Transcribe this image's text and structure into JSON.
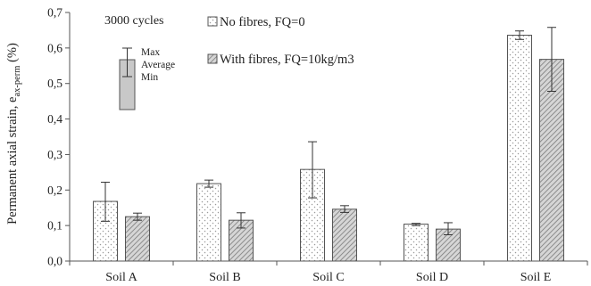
{
  "chart_data": {
    "type": "bar",
    "categories": [
      "Soil A",
      "Soil B",
      "Soil C",
      "Soil D",
      "Soil E"
    ],
    "series": [
      {
        "name": "No fibres, FQ=0",
        "values": [
          0.168,
          0.218,
          0.258,
          0.104,
          0.636
        ],
        "min": [
          0.112,
          0.208,
          0.178,
          0.1,
          0.624
        ],
        "max": [
          0.222,
          0.228,
          0.336,
          0.106,
          0.648
        ],
        "pattern": "dots"
      },
      {
        "name": "With fibres, FQ=10kg/m3",
        "values": [
          0.125,
          0.115,
          0.146,
          0.09,
          0.568
        ],
        "min": [
          0.115,
          0.093,
          0.137,
          0.074,
          0.478
        ],
        "max": [
          0.135,
          0.136,
          0.156,
          0.108,
          0.658
        ],
        "pattern": "hatch"
      }
    ],
    "ylabel_main": "Permanent axial strain, e",
    "ylabel_sub": "ax-perm",
    "ylabel_unit": " (%)",
    "ylim": [
      0,
      0.7
    ],
    "ytick_values": [
      0,
      0.1,
      0.2,
      0.3,
      0.4,
      0.5,
      0.6,
      0.7
    ],
    "ytick_labels": [
      "0,0",
      "0,1",
      "0,2",
      "0,3",
      "0,4",
      "0,5",
      "0,6",
      "0,7"
    ],
    "grid": false,
    "annotation": "3000 cycles",
    "errorbar_key": {
      "max_label": "Max",
      "avg_label": "Average",
      "min_label": "Min"
    },
    "legend_position": "top-left"
  },
  "colors": {
    "axis": "#555555",
    "bar_outline": "#555555",
    "dots_fill": "#ffffff",
    "dot_color": "#9a9a9a",
    "hatch_bg": "#d6d6d6",
    "hatch_line": "#7a7a7a",
    "key_fill": "#c8c8c8"
  }
}
